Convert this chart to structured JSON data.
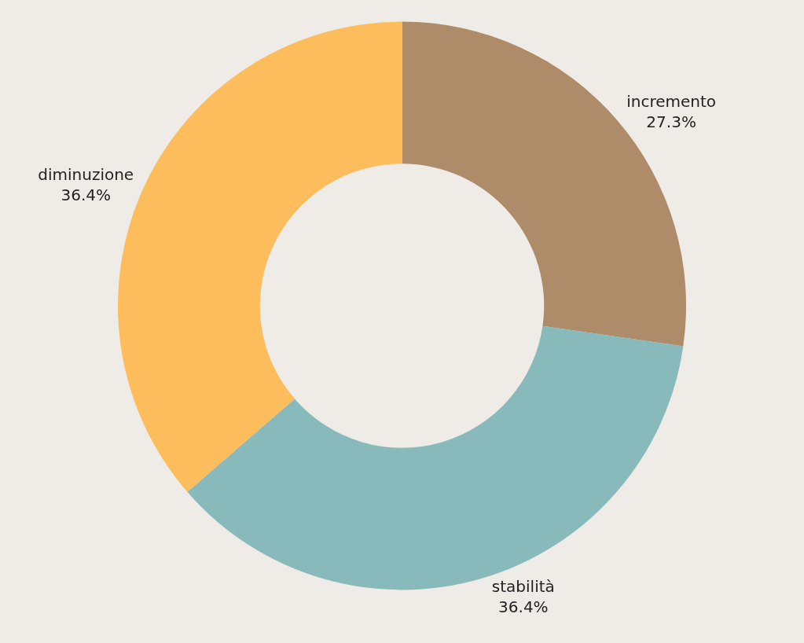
{
  "chart_data": {
    "type": "donut",
    "categories": [
      "incremento",
      "stabilità",
      "diminuzione"
    ],
    "values": [
      27.3,
      36.4,
      36.4
    ],
    "value_labels": [
      "27.3%",
      "36.4%",
      "36.4%"
    ],
    "colors": [
      "#ae8c69",
      "#88b9bb",
      "#fdbd5c"
    ],
    "legend": false
  }
}
